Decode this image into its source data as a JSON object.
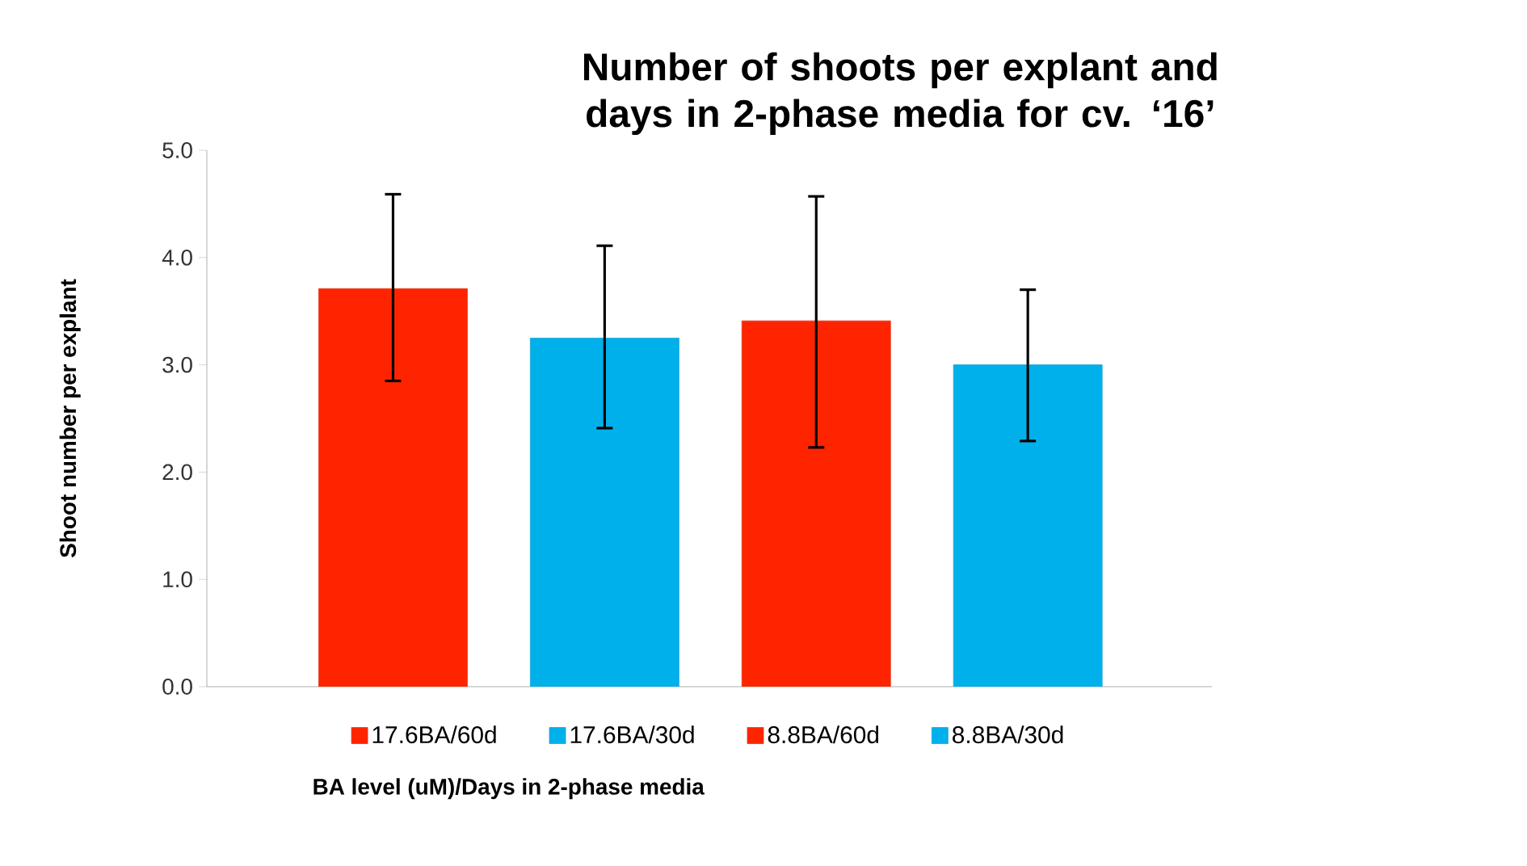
{
  "chart_data": {
    "type": "bar",
    "title": "Number of shoots per explant and days in 2-phase media for cv. ‘16’",
    "xlabel": "BA level (uM)/Days in 2-phase media",
    "ylabel": "Shoot number per explant",
    "categories": [
      null,
      null,
      null,
      null
    ],
    "series": [
      {
        "name": "17.6BA/60d",
        "color": "#ff2400",
        "values": [
          3.71,
          null,
          null,
          null
        ],
        "errors": [
          [
            2.85,
            4.59
          ],
          null,
          null,
          null
        ]
      },
      {
        "name": "17.6BA/30d",
        "color": "#00b0eb",
        "values": [
          null,
          3.25,
          null,
          null
        ],
        "errors": [
          null,
          [
            2.41,
            4.11
          ],
          null,
          null
        ]
      },
      {
        "name": "8.8BA/60d",
        "color": "#ff2400",
        "values": [
          null,
          null,
          3.41,
          null
        ],
        "errors": [
          null,
          null,
          [
            2.23,
            4.57
          ],
          null
        ]
      },
      {
        "name": "8.8BA/30d",
        "color": "#00b0eb",
        "values": [
          null,
          null,
          null,
          3.0
        ],
        "errors": [
          null,
          null,
          null,
          [
            2.29,
            3.7
          ]
        ]
      }
    ],
    "ylim": [
      0,
      5
    ],
    "yticks": [
      {
        "value": 0,
        "label": "0.0"
      },
      {
        "value": 1,
        "label": "1.0"
      },
      {
        "value": 2,
        "label": "2.0"
      },
      {
        "value": 3,
        "label": "3.0"
      },
      {
        "value": 4,
        "label": "4.0"
      },
      {
        "value": 5,
        "label": "5.0"
      }
    ],
    "legend": "bottom"
  }
}
